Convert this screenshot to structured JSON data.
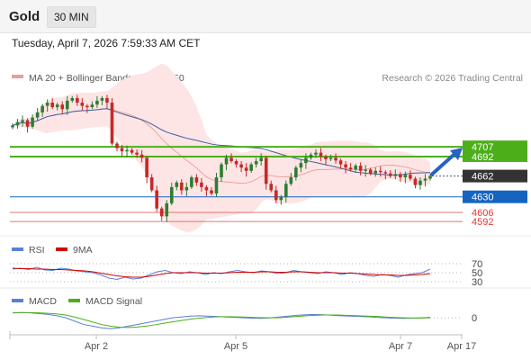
{
  "header": {
    "symbol": "Gold",
    "timeframe": "30 MIN"
  },
  "timestamp": "Tuesday, April 7, 2026 7:59:33 AM CET",
  "legend": {
    "bollinger": "MA 20 + Bollinger Bands",
    "ma50": "MA 50",
    "copyright": "Research © 2026 Trading Central",
    "rsi": "RSI",
    "rsi_ma": "9MA",
    "macd": "MACD",
    "macd_signal": "MACD Signal"
  },
  "colors": {
    "up_candle": "#2e7d32",
    "down_candle": "#c62828",
    "bollinger_fill": "#fde5e5",
    "ma20": "#ef9a9a",
    "ma50": "#3b5f9e",
    "resistance": "#4caf1a",
    "pivot": "#1565c0",
    "support": "#e57373",
    "rsi": "#5b7fd6",
    "rsi_ma": "#d50000",
    "macd": "#5b7fd6",
    "macd_signal": "#4caf1a"
  },
  "chart_data": [
    {
      "type": "candlestick",
      "title": "Gold 30 MIN",
      "x_ticks": [
        "Apr 2",
        "Apr 5",
        "Apr 7",
        "Apr 17"
      ],
      "ylim": [
        4570,
        4800
      ],
      "candles_close": [
        4740,
        4745,
        4748,
        4738,
        4752,
        4760,
        4770,
        4775,
        4768,
        4772,
        4765,
        4778,
        4782,
        4775,
        4770,
        4768,
        4772,
        4778,
        4782,
        4775,
        4712,
        4705,
        4700,
        4702,
        4698,
        4695,
        4690,
        4660,
        4640,
        4612,
        4600,
        4620,
        4645,
        4652,
        4640,
        4645,
        4660,
        4652,
        4645,
        4640,
        4635,
        4660,
        4680,
        4690,
        4685,
        4680,
        4675,
        4670,
        4680,
        4685,
        4690,
        4650,
        4640,
        4625,
        4630,
        4650,
        4660,
        4675,
        4682,
        4690,
        4695,
        4698,
        4692,
        4688,
        4690,
        4686,
        4680,
        4675,
        4672,
        4678,
        4670,
        4672,
        4666,
        4670,
        4668,
        4666,
        4662,
        4665,
        4660,
        4664,
        4658,
        4648,
        4655,
        4658,
        4662
      ],
      "series": [
        {
          "name": "MA 20 + Bollinger Bands",
          "values": []
        },
        {
          "name": "MA 50",
          "values": []
        }
      ],
      "levels": [
        {
          "label": "4707",
          "value": 4707,
          "kind": "resistance"
        },
        {
          "label": "4692",
          "value": 4692,
          "kind": "resistance"
        },
        {
          "label": "4662",
          "value": 4662,
          "kind": "last"
        },
        {
          "label": "4630",
          "value": 4630,
          "kind": "pivot"
        },
        {
          "label": "4606",
          "value": 4606,
          "kind": "support"
        },
        {
          "label": "4592",
          "value": 4592,
          "kind": "support"
        }
      ]
    },
    {
      "type": "line",
      "title": "RSI",
      "levels": [
        {
          "label": "70",
          "value": 70
        },
        {
          "label": "50",
          "value": 50
        },
        {
          "label": "30",
          "value": 30
        }
      ],
      "series": [
        {
          "name": "RSI",
          "values": [
            58,
            60,
            57,
            62,
            56,
            55,
            60,
            58,
            54,
            52,
            50,
            45,
            38,
            35,
            40,
            36,
            38,
            45,
            52,
            55,
            50,
            48,
            52,
            50,
            46,
            50,
            48,
            52,
            55,
            52,
            50,
            54,
            52,
            48,
            50,
            55,
            52,
            50,
            48,
            52,
            50,
            46,
            50,
            48,
            44,
            42,
            46,
            44,
            40,
            45,
            48,
            50,
            58
          ]
        },
        {
          "name": "9MA",
          "values": [
            60,
            59,
            59,
            58,
            58,
            57,
            57,
            56,
            55,
            54,
            52,
            49,
            46,
            43,
            41,
            40,
            40,
            42,
            45,
            48,
            50,
            50,
            50,
            50,
            49,
            49,
            49,
            50,
            51,
            51,
            51,
            52,
            52,
            51,
            51,
            52,
            52,
            51,
            50,
            50,
            50,
            49,
            49,
            48,
            47,
            46,
            45,
            45,
            44,
            44,
            45,
            46,
            48
          ]
        }
      ],
      "ylim": [
        20,
        80
      ]
    },
    {
      "type": "line",
      "title": "MACD",
      "levels": [
        {
          "label": "0",
          "value": 0
        }
      ],
      "series": [
        {
          "name": "MACD",
          "values": [
            3,
            3.2,
            3,
            2.5,
            2,
            1.2,
            0,
            -2,
            -4,
            -5,
            -6,
            -6.5,
            -6,
            -5,
            -4,
            -3,
            -2,
            -1,
            0,
            0.5,
            1,
            1.2,
            1,
            0.8,
            0.5,
            0.3,
            0,
            -0.2,
            -0.3,
            0,
            0.5,
            1,
            1.5,
            1.8,
            2,
            1.8,
            1.5,
            1.2,
            1,
            0.8,
            0.6,
            0.3,
            0,
            -0.2,
            -0.3,
            -0.2,
            0,
            0.3
          ]
        },
        {
          "name": "MACD Signal",
          "values": [
            3,
            3.1,
            3.1,
            3,
            2.7,
            2.3,
            1.6,
            0.5,
            -1,
            -2.5,
            -4,
            -5,
            -5.6,
            -5.8,
            -5.5,
            -5,
            -4.2,
            -3.3,
            -2.4,
            -1.6,
            -0.8,
            -0.2,
            0.3,
            0.6,
            0.7,
            0.6,
            0.5,
            0.3,
            0.1,
            0,
            0.1,
            0.4,
            0.8,
            1.2,
            1.5,
            1.7,
            1.7,
            1.6,
            1.4,
            1.2,
            1,
            0.8,
            0.5,
            0.2,
            0,
            -0.1,
            -0.1,
            0
          ]
        }
      ],
      "ylim": [
        -8,
        6
      ]
    }
  ]
}
